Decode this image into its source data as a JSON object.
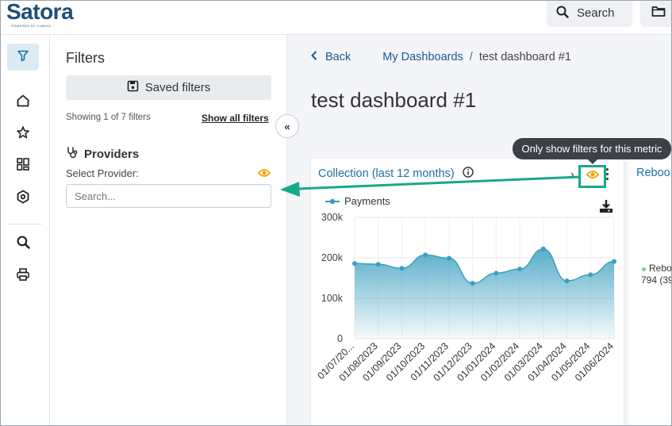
{
  "app": {
    "logo_text": "Satora",
    "logo_sub": "POWERED BY CUBIKO"
  },
  "topbar": {
    "search_label": "Search",
    "icons": [
      "search-icon",
      "folder-icon"
    ]
  },
  "rail": {
    "items": [
      {
        "name": "filter-icon",
        "active": true
      },
      {
        "name": "home-icon"
      },
      {
        "name": "star-icon"
      },
      {
        "name": "dashboard-grid-icon"
      },
      {
        "name": "settings-icon"
      },
      {
        "name": "search-icon"
      },
      {
        "name": "print-icon"
      }
    ]
  },
  "filters": {
    "title": "Filters",
    "saved_filters_label": "Saved filters",
    "showing_text": "Showing 1 of 7 filters",
    "show_all_label": "Show all filters",
    "providers_heading": "Providers",
    "select_provider_label": "Select Provider:",
    "search_placeholder": "Search...",
    "collapse_label": "«"
  },
  "breadcrumb": {
    "back_label": "Back",
    "parent": "My Dashboards",
    "separator": "/",
    "current": "test dashboard #1"
  },
  "page": {
    "title": "test dashboard #1"
  },
  "tooltip": {
    "text": "Only show filters for this metric"
  },
  "metric_card": {
    "title": "Collection (last 12 months)",
    "chevron": "›",
    "accent_color": "#18a88a",
    "eye_color": "#f0a500"
  },
  "second_card": {
    "title": "Reboo",
    "legend_label": "Rebo",
    "value_text": "794 (39"
  },
  "chart_data": {
    "type": "area",
    "series": [
      {
        "name": "Payments",
        "values": [
          186000,
          184000,
          174000,
          207000,
          199000,
          137000,
          162000,
          172000,
          222000,
          143000,
          158000,
          191000
        ]
      }
    ],
    "categories": [
      "01/07/20...",
      "01/08/2023",
      "01/09/2023",
      "01/10/2023",
      "01/11/2023",
      "01/12/2023",
      "01/01/2024",
      "01/02/2024",
      "01/03/2024",
      "01/04/2024",
      "01/05/2024",
      "01/06/2024"
    ],
    "y_ticks": [
      "300k",
      "200k",
      "100k",
      "0"
    ],
    "ylim": [
      0,
      300000
    ],
    "grid": true,
    "legend_position": "top-left",
    "color": "#3a9fbf"
  }
}
